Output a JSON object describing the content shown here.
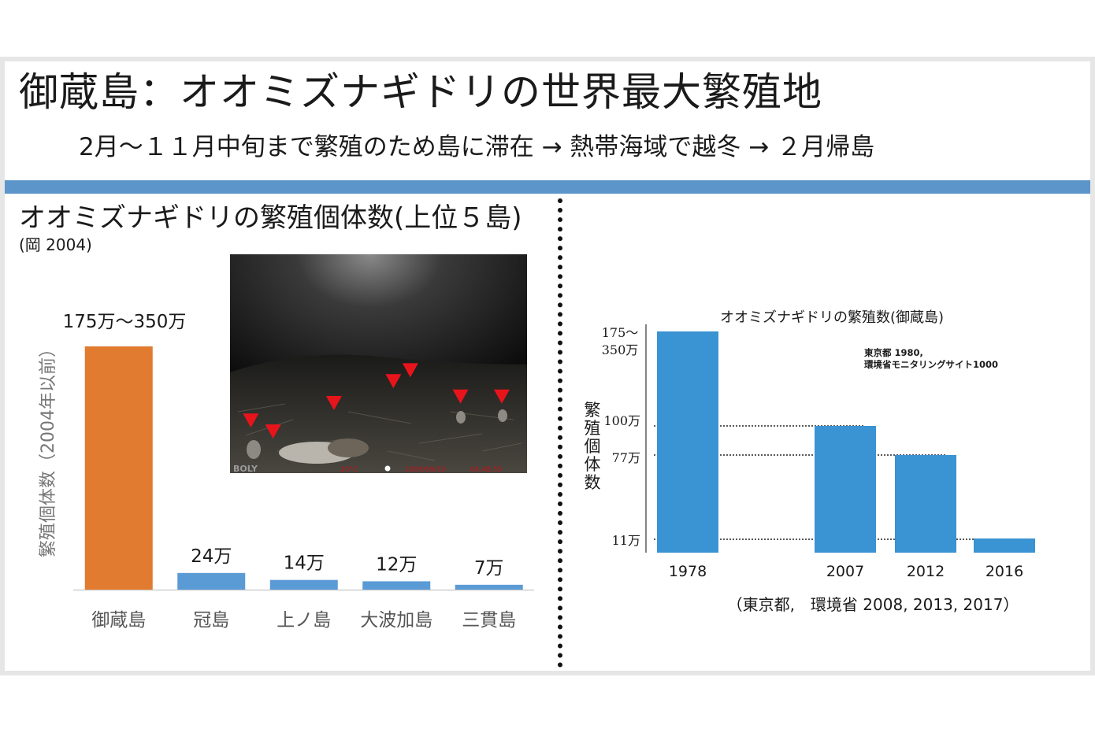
{
  "slide": {
    "title": "御蔵島：オオミズナギドリの世界最大繁殖地",
    "subtitle": "2月～１１月中旬まで繁殖のため島に滞在 → 熱帯海域で越冬 → ２月帰島"
  },
  "left_panel": {
    "title": "オオミズナギドリの繁殖個体数(上位５島)",
    "source": "(岡 2004)"
  },
  "photo": {
    "watermark": "BOLY",
    "overlay_text_1": "20°C",
    "overlay_text_2": "2009/09/10",
    "overlay_text_3": "04:48:55",
    "marker_color": "#e8141c",
    "markers": [
      {
        "x": 0.07,
        "y": 0.76
      },
      {
        "x": 0.145,
        "y": 0.81
      },
      {
        "x": 0.35,
        "y": 0.68
      },
      {
        "x": 0.55,
        "y": 0.58
      },
      {
        "x": 0.607,
        "y": 0.53
      },
      {
        "x": 0.776,
        "y": 0.65
      },
      {
        "x": 0.915,
        "y": 0.65
      }
    ]
  },
  "chart_data": [
    {
      "type": "bar",
      "categories": [
        "御蔵島",
        "冠島",
        "上ノ島",
        "大波加島",
        "三貫島"
      ],
      "values": [
        3500000,
        240000,
        140000,
        120000,
        70000
      ],
      "data_labels": [
        "175万～350万",
        "24万",
        "14万",
        "12万",
        "7万"
      ],
      "bar_colors": [
        "#e07b30",
        "#5b9bd5",
        "#5b9bd5",
        "#5b9bd5",
        "#5b9bd5"
      ],
      "title": "",
      "xlabel": "",
      "ylabel": "繁殖個体数（2004年以前）",
      "ylim": [
        0,
        3600000
      ]
    },
    {
      "type": "bar",
      "title": "オオミズナギドリの繁殖数(御蔵島)",
      "categories": [
        "1978",
        "2007",
        "2012",
        "2016"
      ],
      "values": [
        3500000,
        1000000,
        770000,
        110000
      ],
      "bar_color": "#3a93d2",
      "ylabel": "繁殖個体数",
      "ytick_labels": [
        "175～350万",
        "100万",
        "77万",
        "11万"
      ],
      "ytick_values": [
        3500000,
        1000000,
        770000,
        110000
      ],
      "annotation_lines": [
        "東京都 1980,",
        "環境省モニタリングサイト1000"
      ],
      "source": "（東京都,　環境省 2008, 2013, 2017）",
      "grid": "dotted reference lines"
    }
  ]
}
